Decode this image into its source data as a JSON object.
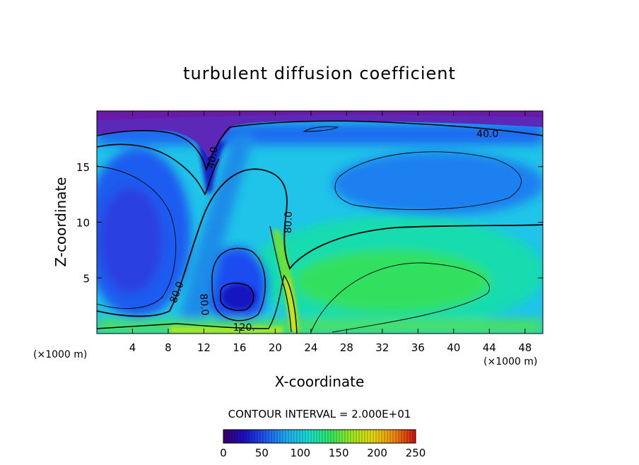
{
  "chart_data": {
    "type": "heatmap",
    "title": "turbulent diffusion coefficient",
    "xlabel": "X-coordinate",
    "ylabel": "Z-coordinate",
    "x_unit_left": "(×1000 m)",
    "x_unit_right": "(×1000 m)",
    "xlim": [
      0,
      50
    ],
    "ylim": [
      0,
      20
    ],
    "x_ticks": [
      4,
      8,
      12,
      16,
      20,
      24,
      28,
      32,
      36,
      40,
      44,
      48
    ],
    "y_ticks": [
      5,
      10,
      15
    ],
    "contour_interval_text": "CONTOUR INTERVAL = 2.000E+01",
    "contour_labels": [
      {
        "text": "40.0",
        "x": 43.8,
        "z": 17.9,
        "angle": 0
      },
      {
        "text": "40.0",
        "x": 13.0,
        "z": 15.8,
        "angle": -80
      },
      {
        "text": "80.0",
        "x": 21.5,
        "z": 10.0,
        "angle": -88
      },
      {
        "text": "80.0",
        "x": 9.0,
        "z": 3.7,
        "angle": -70
      },
      {
        "text": "80.0",
        "x": 12.0,
        "z": 2.6,
        "angle": 85
      },
      {
        "text": "120.",
        "x": 16.5,
        "z": 0.5,
        "angle": 0
      }
    ],
    "colorbar": {
      "min": 0,
      "max": 250,
      "ticks": [
        0,
        50,
        100,
        150,
        200,
        250
      ],
      "colors": [
        "#3a0066",
        "#1a10c8",
        "#1f5cf0",
        "#1fb0f0",
        "#19e0d2",
        "#30e860",
        "#a0e820",
        "#e8d810",
        "#f08a10",
        "#d01010"
      ]
    },
    "field_colors": {
      "top_band": "#6a2bbd",
      "upper_blue": "#1b3ef2",
      "mid_blue": "#1a7ff0",
      "cyan": "#1fc4e8",
      "cyan_green": "#19dcb0",
      "green": "#38e45a",
      "yellow_green": "#a8e820",
      "yellow": "#f0e010"
    }
  }
}
